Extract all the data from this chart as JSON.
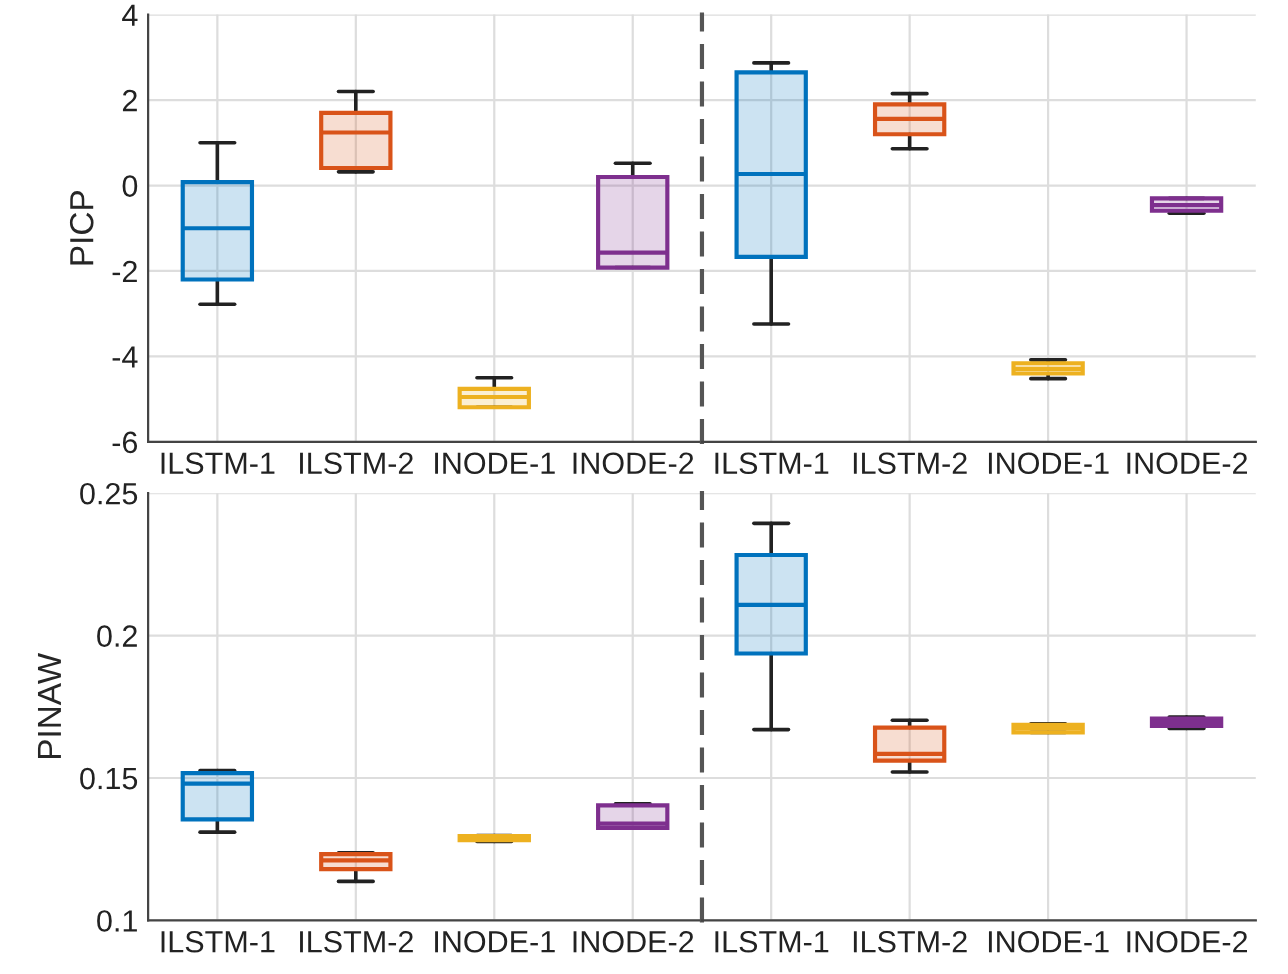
{
  "chart_data": [
    {
      "type": "box",
      "ylabel": "PICP",
      "categories": [
        "ILSTM-1",
        "ILSTM-2",
        "INODE-1",
        "INODE-2"
      ],
      "ylim": [
        -6,
        4
      ],
      "yticks": [
        -6,
        -4,
        -2,
        0,
        2,
        4
      ],
      "colors": [
        "#0072bd",
        "#d95319",
        "#edb120",
        "#7e2f8e"
      ],
      "boxes": [
        {
          "low": -2.78,
          "q1": -2.2,
          "median": -1.0,
          "q3": 0.08,
          "high": 1.0
        },
        {
          "low": 0.32,
          "q1": 0.41,
          "median": 1.24,
          "q3": 1.7,
          "high": 2.2
        },
        {
          "low": -5.19,
          "q1": -5.19,
          "median": -4.95,
          "q3": -4.76,
          "high": -4.5
        },
        {
          "low": -1.92,
          "q1": -1.92,
          "median": -1.57,
          "q3": 0.2,
          "high": 0.52
        }
      ],
      "grid": true
    },
    {
      "type": "box",
      "categories": [
        "ILSTM-1",
        "ILSTM-2",
        "INODE-1",
        "INODE-2"
      ],
      "ylim": [
        -6,
        4
      ],
      "tick_labels": "x",
      "colors": [
        "#0072bd",
        "#d95319",
        "#edb120",
        "#7e2f8e"
      ],
      "boxes": [
        {
          "low": -3.24,
          "q1": -1.67,
          "median": 0.27,
          "q3": 2.65,
          "high": 2.87
        },
        {
          "low": 0.86,
          "q1": 1.2,
          "median": 1.56,
          "q3": 1.9,
          "high": 2.15
        },
        {
          "low": -4.52,
          "q1": -4.4,
          "median": -4.29,
          "q3": -4.16,
          "high": -4.08
        },
        {
          "low": -0.65,
          "q1": -0.59,
          "median": -0.46,
          "q3": -0.3,
          "high": -0.3
        }
      ],
      "grid": true
    },
    {
      "type": "box",
      "ylabel": "PINAW",
      "categories": [
        "ILSTM-1",
        "ILSTM-2",
        "INODE-1",
        "INODE-2"
      ],
      "ylim": [
        0.1,
        0.25
      ],
      "yticks": [
        0.1,
        0.15,
        0.2,
        0.25
      ],
      "colors": [
        "#0072bd",
        "#d95319",
        "#edb120",
        "#7e2f8e"
      ],
      "boxes": [
        {
          "low": 0.131,
          "q1": 0.1355,
          "median": 0.148,
          "q3": 0.1517,
          "high": 0.1526
        },
        {
          "low": 0.1137,
          "q1": 0.118,
          "median": 0.1211,
          "q3": 0.1233,
          "high": 0.1237
        },
        {
          "low": 0.1277,
          "q1": 0.1282,
          "median": 0.1289,
          "q3": 0.1296,
          "high": 0.1298
        },
        {
          "low": 0.1325,
          "q1": 0.1325,
          "median": 0.134,
          "q3": 0.1404,
          "high": 0.1409
        }
      ],
      "grid": true
    },
    {
      "type": "box",
      "categories": [
        "ILSTM-1",
        "ILSTM-2",
        "INODE-1",
        "INODE-2"
      ],
      "ylim": [
        0.1,
        0.25
      ],
      "tick_labels": "x",
      "colors": [
        "#0072bd",
        "#d95319",
        "#edb120",
        "#7e2f8e"
      ],
      "boxes": [
        {
          "low": 0.167,
          "q1": 0.1937,
          "median": 0.2108,
          "q3": 0.2283,
          "high": 0.2394
        },
        {
          "low": 0.1521,
          "q1": 0.1561,
          "median": 0.1585,
          "q3": 0.1677,
          "high": 0.1703
        },
        {
          "low": 0.166,
          "q1": 0.166,
          "median": 0.1675,
          "q3": 0.1687,
          "high": 0.169
        },
        {
          "low": 0.1674,
          "q1": 0.1683,
          "median": 0.1697,
          "q3": 0.1709,
          "high": 0.1714
        }
      ],
      "grid": true
    }
  ]
}
